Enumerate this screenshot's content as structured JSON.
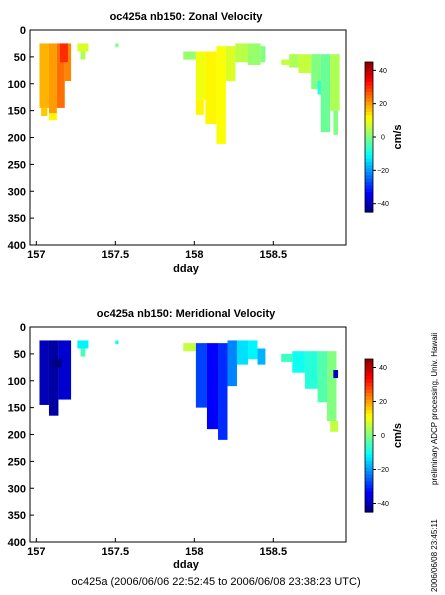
{
  "chart_data": [
    {
      "type": "heatmap",
      "title": "oc425a nb150: Zonal Velocity",
      "xlabel": "dday",
      "ylabel": "",
      "xlim": [
        156.96,
        158.96
      ],
      "ylim": [
        400,
        0
      ],
      "xticks": [
        157,
        157.5,
        158,
        158.5
      ],
      "xtick_labels": [
        "157",
        "157.5",
        "158",
        "158.5"
      ],
      "yticks": [
        0,
        50,
        100,
        150,
        200,
        250,
        300,
        350,
        400
      ],
      "ytick_labels": [
        "0",
        "50",
        "100",
        "150",
        "200",
        "250",
        "300",
        "350",
        "400"
      ],
      "colorbar": {
        "label": "cm/s",
        "range": [
          -45,
          45
        ],
        "ticks": [
          40,
          20,
          0,
          -20,
          -40
        ],
        "tick_labels": [
          "40",
          "20",
          "0",
          "−20",
          "−40"
        ]
      },
      "grid": false,
      "cells": [
        {
          "x0": 157.02,
          "x1": 157.08,
          "y0": 25,
          "y1": 145,
          "value": 18
        },
        {
          "x0": 157.08,
          "x1": 157.13,
          "y0": 25,
          "y1": 155,
          "value": 20
        },
        {
          "x0": 157.13,
          "x1": 157.18,
          "y0": 25,
          "y1": 145,
          "value": 24
        },
        {
          "x0": 157.18,
          "x1": 157.22,
          "y0": 25,
          "y1": 95,
          "value": 22
        },
        {
          "x0": 157.03,
          "x1": 157.07,
          "y0": 145,
          "y1": 160,
          "value": 16
        },
        {
          "x0": 157.08,
          "x1": 157.13,
          "y0": 155,
          "y1": 168,
          "value": 12
        },
        {
          "x0": 157.15,
          "x1": 157.2,
          "y0": 25,
          "y1": 60,
          "value": 30
        },
        {
          "x0": 157.26,
          "x1": 157.33,
          "y0": 25,
          "y1": 40,
          "value": 8
        },
        {
          "x0": 157.28,
          "x1": 157.31,
          "y0": 40,
          "y1": 55,
          "value": 4
        },
        {
          "x0": 157.5,
          "x1": 157.52,
          "y0": 25,
          "y1": 32,
          "value": 0
        },
        {
          "x0": 157.93,
          "x1": 158.01,
          "y0": 40,
          "y1": 55,
          "value": 2
        },
        {
          "x0": 158.01,
          "x1": 158.07,
          "y0": 40,
          "y1": 130,
          "value": 10
        },
        {
          "x0": 158.01,
          "x1": 158.06,
          "y0": 130,
          "y1": 158,
          "value": 12
        },
        {
          "x0": 158.07,
          "x1": 158.14,
          "y0": 40,
          "y1": 175,
          "value": 12
        },
        {
          "x0": 158.14,
          "x1": 158.2,
          "y0": 30,
          "y1": 212,
          "value": 11
        },
        {
          "x0": 158.2,
          "x1": 158.26,
          "y0": 30,
          "y1": 95,
          "value": 8
        },
        {
          "x0": 158.26,
          "x1": 158.34,
          "y0": 25,
          "y1": 60,
          "value": 5
        },
        {
          "x0": 158.34,
          "x1": 158.42,
          "y0": 25,
          "y1": 65,
          "value": 2
        },
        {
          "x0": 158.42,
          "x1": 158.45,
          "y0": 30,
          "y1": 60,
          "value": 0
        },
        {
          "x0": 158.55,
          "x1": 158.6,
          "y0": 55,
          "y1": 65,
          "value": 6
        },
        {
          "x0": 158.6,
          "x1": 158.66,
          "y0": 45,
          "y1": 70,
          "value": 4
        },
        {
          "x0": 158.66,
          "x1": 158.74,
          "y0": 45,
          "y1": 80,
          "value": 6
        },
        {
          "x0": 158.74,
          "x1": 158.8,
          "y0": 45,
          "y1": 110,
          "value": 0
        },
        {
          "x0": 158.78,
          "x1": 158.82,
          "y0": 95,
          "y1": 120,
          "value": -8
        },
        {
          "x0": 158.8,
          "x1": 158.86,
          "y0": 45,
          "y1": 190,
          "value": -2
        },
        {
          "x0": 158.86,
          "x1": 158.92,
          "y0": 45,
          "y1": 150,
          "value": 4
        },
        {
          "x0": 158.88,
          "x1": 158.91,
          "y0": 150,
          "y1": 195,
          "value": 0
        }
      ]
    },
    {
      "type": "heatmap",
      "title": "oc425a nb150: Meridional Velocity",
      "xlabel": "dday",
      "ylabel": "",
      "xlim": [
        156.96,
        158.96
      ],
      "ylim": [
        400,
        0
      ],
      "xticks": [
        157,
        157.5,
        158,
        158.5
      ],
      "xtick_labels": [
        "157",
        "157.5",
        "158",
        "158.5"
      ],
      "yticks": [
        0,
        50,
        100,
        150,
        200,
        250,
        300,
        350,
        400
      ],
      "ytick_labels": [
        "0",
        "50",
        "100",
        "150",
        "200",
        "250",
        "300",
        "350",
        "400"
      ],
      "colorbar": {
        "label": "cm/s",
        "range": [
          -45,
          45
        ],
        "ticks": [
          40,
          20,
          0,
          -20,
          -40
        ],
        "tick_labels": [
          "40",
          "20",
          "0",
          "−20",
          "−40"
        ]
      },
      "grid": false,
      "cells": [
        {
          "x0": 157.02,
          "x1": 157.08,
          "y0": 25,
          "y1": 145,
          "value": -40
        },
        {
          "x0": 157.08,
          "x1": 157.14,
          "y0": 25,
          "y1": 165,
          "value": -42
        },
        {
          "x0": 157.14,
          "x1": 157.22,
          "y0": 25,
          "y1": 135,
          "value": -38
        },
        {
          "x0": 157.1,
          "x1": 157.16,
          "y0": 60,
          "y1": 75,
          "value": -45
        },
        {
          "x0": 157.26,
          "x1": 157.33,
          "y0": 25,
          "y1": 40,
          "value": -12
        },
        {
          "x0": 157.28,
          "x1": 157.31,
          "y0": 40,
          "y1": 55,
          "value": -5
        },
        {
          "x0": 157.5,
          "x1": 157.52,
          "y0": 25,
          "y1": 32,
          "value": -10
        },
        {
          "x0": 157.93,
          "x1": 158.01,
          "y0": 30,
          "y1": 45,
          "value": 6
        },
        {
          "x0": 158.01,
          "x1": 158.08,
          "y0": 30,
          "y1": 150,
          "value": -28
        },
        {
          "x0": 158.08,
          "x1": 158.15,
          "y0": 30,
          "y1": 190,
          "value": -34
        },
        {
          "x0": 158.15,
          "x1": 158.21,
          "y0": 30,
          "y1": 210,
          "value": -30
        },
        {
          "x0": 158.21,
          "x1": 158.27,
          "y0": 25,
          "y1": 110,
          "value": -22
        },
        {
          "x0": 158.27,
          "x1": 158.34,
          "y0": 25,
          "y1": 70,
          "value": -14
        },
        {
          "x0": 158.34,
          "x1": 158.4,
          "y0": 25,
          "y1": 60,
          "value": -12
        },
        {
          "x0": 158.4,
          "x1": 158.45,
          "y0": 40,
          "y1": 70,
          "value": -18
        },
        {
          "x0": 158.55,
          "x1": 158.62,
          "y0": 50,
          "y1": 65,
          "value": -6
        },
        {
          "x0": 158.62,
          "x1": 158.7,
          "y0": 45,
          "y1": 85,
          "value": -10
        },
        {
          "x0": 158.7,
          "x1": 158.78,
          "y0": 45,
          "y1": 115,
          "value": -8
        },
        {
          "x0": 158.78,
          "x1": 158.84,
          "y0": 45,
          "y1": 140,
          "value": -4
        },
        {
          "x0": 158.84,
          "x1": 158.9,
          "y0": 45,
          "y1": 175,
          "value": 0
        },
        {
          "x0": 158.86,
          "x1": 158.91,
          "y0": 175,
          "y1": 195,
          "value": 6
        },
        {
          "x0": 158.88,
          "x1": 158.91,
          "y0": 80,
          "y1": 95,
          "value": -40
        }
      ]
    }
  ],
  "side_notes": [
    "preliminary ADCP processing,   Univ. Hawaii",
    "2006/06/08 23:45:11"
  ],
  "footer": "oc425a (2006/06/06 22:52:45 to 2006/06/08 23:38:23 UTC)"
}
